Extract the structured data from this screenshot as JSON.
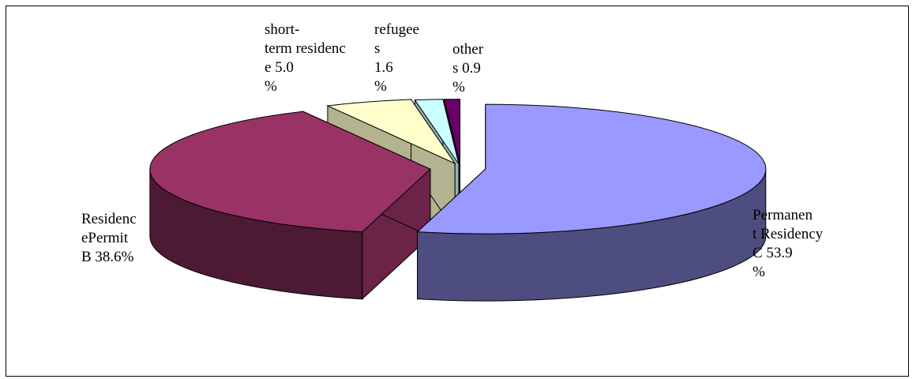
{
  "chart_data": {
    "type": "pie",
    "style": "3d-exploded",
    "title": "",
    "slices": [
      {
        "label": "Permanen t Residency C",
        "value": 53.9,
        "value_text": "53.9 %",
        "color": "#9999ff"
      },
      {
        "label": "Residenc ePermit B",
        "value": 38.6,
        "value_text": "38.6%",
        "color": "#993366"
      },
      {
        "label": "short-term residenc e",
        "value": 5.0,
        "value_text": "5.0 %",
        "color": "#ffffcc"
      },
      {
        "label": "refugee s",
        "value": 1.6,
        "value_text": "1.6 %",
        "color": "#ccffff"
      },
      {
        "label": "other s",
        "value": 0.9,
        "value_text": "0.9 %",
        "color": "#660066"
      }
    ],
    "legend": "none"
  },
  "labels": {
    "permanent": "Permanen\nt Residency\nC   53.9\n%",
    "residence_b": "Residenc\nePermit\nB 38.6%",
    "short_term": "short-\nterm residenc\ne   5.0\n%",
    "refugees": "refugee\ns\n1.6\n%",
    "others": "other\ns 0.9\n%"
  }
}
